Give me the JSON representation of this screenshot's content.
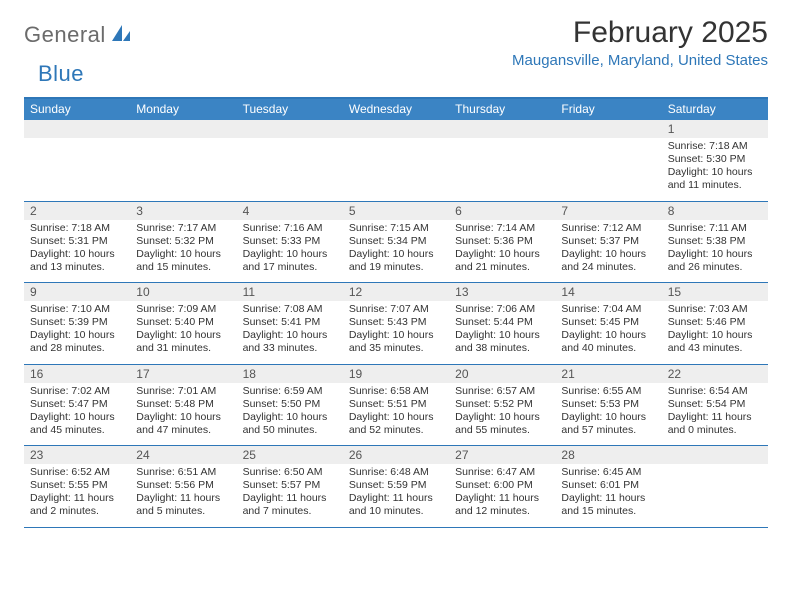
{
  "brand": {
    "part1": "General",
    "part2": "Blue"
  },
  "title": "February 2025",
  "location": "Maugansville, Maryland, United States",
  "colors": {
    "accent": "#2e77b8",
    "header_bg": "#3b84c4",
    "daynum_bg": "#eeeeee",
    "text": "#333333",
    "muted": "#6b6b6b"
  },
  "weekdays": [
    "Sunday",
    "Monday",
    "Tuesday",
    "Wednesday",
    "Thursday",
    "Friday",
    "Saturday"
  ],
  "weeks": [
    [
      null,
      null,
      null,
      null,
      null,
      null,
      {
        "n": "1",
        "sunrise": "7:18 AM",
        "sunset": "5:30 PM",
        "dl1": "Daylight: 10 hours",
        "dl2": "and 11 minutes."
      }
    ],
    [
      {
        "n": "2",
        "sunrise": "7:18 AM",
        "sunset": "5:31 PM",
        "dl1": "Daylight: 10 hours",
        "dl2": "and 13 minutes."
      },
      {
        "n": "3",
        "sunrise": "7:17 AM",
        "sunset": "5:32 PM",
        "dl1": "Daylight: 10 hours",
        "dl2": "and 15 minutes."
      },
      {
        "n": "4",
        "sunrise": "7:16 AM",
        "sunset": "5:33 PM",
        "dl1": "Daylight: 10 hours",
        "dl2": "and 17 minutes."
      },
      {
        "n": "5",
        "sunrise": "7:15 AM",
        "sunset": "5:34 PM",
        "dl1": "Daylight: 10 hours",
        "dl2": "and 19 minutes."
      },
      {
        "n": "6",
        "sunrise": "7:14 AM",
        "sunset": "5:36 PM",
        "dl1": "Daylight: 10 hours",
        "dl2": "and 21 minutes."
      },
      {
        "n": "7",
        "sunrise": "7:12 AM",
        "sunset": "5:37 PM",
        "dl1": "Daylight: 10 hours",
        "dl2": "and 24 minutes."
      },
      {
        "n": "8",
        "sunrise": "7:11 AM",
        "sunset": "5:38 PM",
        "dl1": "Daylight: 10 hours",
        "dl2": "and 26 minutes."
      }
    ],
    [
      {
        "n": "9",
        "sunrise": "7:10 AM",
        "sunset": "5:39 PM",
        "dl1": "Daylight: 10 hours",
        "dl2": "and 28 minutes."
      },
      {
        "n": "10",
        "sunrise": "7:09 AM",
        "sunset": "5:40 PM",
        "dl1": "Daylight: 10 hours",
        "dl2": "and 31 minutes."
      },
      {
        "n": "11",
        "sunrise": "7:08 AM",
        "sunset": "5:41 PM",
        "dl1": "Daylight: 10 hours",
        "dl2": "and 33 minutes."
      },
      {
        "n": "12",
        "sunrise": "7:07 AM",
        "sunset": "5:43 PM",
        "dl1": "Daylight: 10 hours",
        "dl2": "and 35 minutes."
      },
      {
        "n": "13",
        "sunrise": "7:06 AM",
        "sunset": "5:44 PM",
        "dl1": "Daylight: 10 hours",
        "dl2": "and 38 minutes."
      },
      {
        "n": "14",
        "sunrise": "7:04 AM",
        "sunset": "5:45 PM",
        "dl1": "Daylight: 10 hours",
        "dl2": "and 40 minutes."
      },
      {
        "n": "15",
        "sunrise": "7:03 AM",
        "sunset": "5:46 PM",
        "dl1": "Daylight: 10 hours",
        "dl2": "and 43 minutes."
      }
    ],
    [
      {
        "n": "16",
        "sunrise": "7:02 AM",
        "sunset": "5:47 PM",
        "dl1": "Daylight: 10 hours",
        "dl2": "and 45 minutes."
      },
      {
        "n": "17",
        "sunrise": "7:01 AM",
        "sunset": "5:48 PM",
        "dl1": "Daylight: 10 hours",
        "dl2": "and 47 minutes."
      },
      {
        "n": "18",
        "sunrise": "6:59 AM",
        "sunset": "5:50 PM",
        "dl1": "Daylight: 10 hours",
        "dl2": "and 50 minutes."
      },
      {
        "n": "19",
        "sunrise": "6:58 AM",
        "sunset": "5:51 PM",
        "dl1": "Daylight: 10 hours",
        "dl2": "and 52 minutes."
      },
      {
        "n": "20",
        "sunrise": "6:57 AM",
        "sunset": "5:52 PM",
        "dl1": "Daylight: 10 hours",
        "dl2": "and 55 minutes."
      },
      {
        "n": "21",
        "sunrise": "6:55 AM",
        "sunset": "5:53 PM",
        "dl1": "Daylight: 10 hours",
        "dl2": "and 57 minutes."
      },
      {
        "n": "22",
        "sunrise": "6:54 AM",
        "sunset": "5:54 PM",
        "dl1": "Daylight: 11 hours",
        "dl2": "and 0 minutes."
      }
    ],
    [
      {
        "n": "23",
        "sunrise": "6:52 AM",
        "sunset": "5:55 PM",
        "dl1": "Daylight: 11 hours",
        "dl2": "and 2 minutes."
      },
      {
        "n": "24",
        "sunrise": "6:51 AM",
        "sunset": "5:56 PM",
        "dl1": "Daylight: 11 hours",
        "dl2": "and 5 minutes."
      },
      {
        "n": "25",
        "sunrise": "6:50 AM",
        "sunset": "5:57 PM",
        "dl1": "Daylight: 11 hours",
        "dl2": "and 7 minutes."
      },
      {
        "n": "26",
        "sunrise": "6:48 AM",
        "sunset": "5:59 PM",
        "dl1": "Daylight: 11 hours",
        "dl2": "and 10 minutes."
      },
      {
        "n": "27",
        "sunrise": "6:47 AM",
        "sunset": "6:00 PM",
        "dl1": "Daylight: 11 hours",
        "dl2": "and 12 minutes."
      },
      {
        "n": "28",
        "sunrise": "6:45 AM",
        "sunset": "6:01 PM",
        "dl1": "Daylight: 11 hours",
        "dl2": "and 15 minutes."
      },
      null
    ]
  ],
  "labels": {
    "sunrise": "Sunrise:",
    "sunset": "Sunset:"
  }
}
